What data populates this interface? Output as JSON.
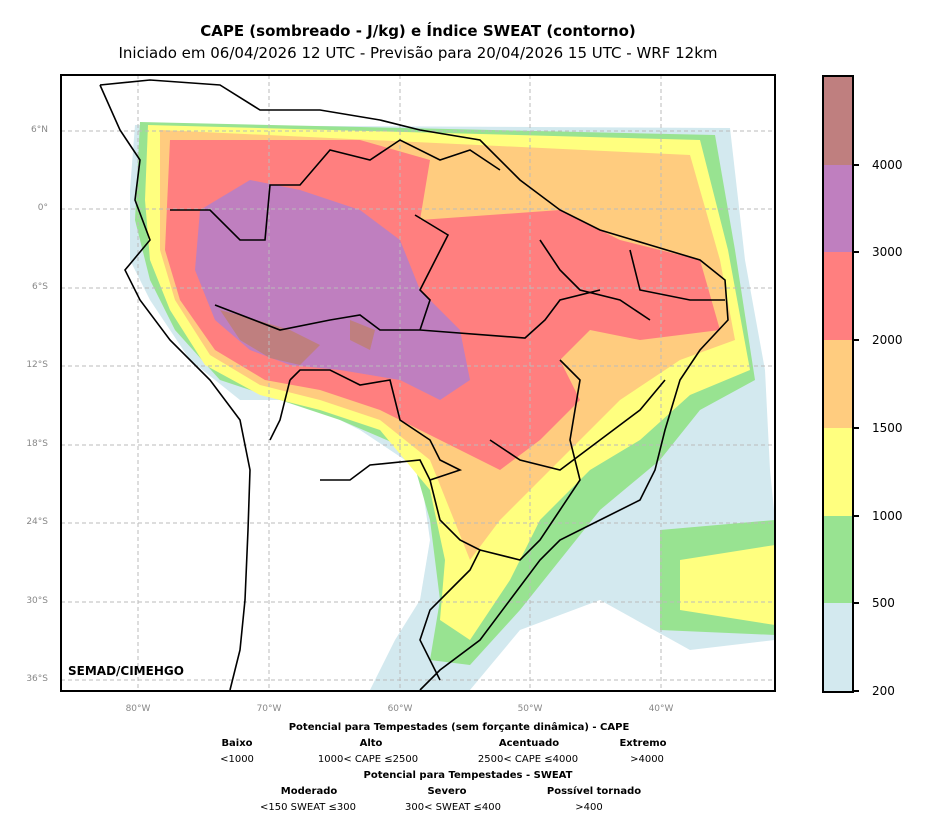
{
  "title": "CAPE (sombreado - J/kg) e Índice SWEAT (contorno)",
  "subtitle": "Iniciado em 06/04/2026 12 UTC - Previsão para 20/04/2026 15 UTC - WRF 12km",
  "credit": "SEMAD/CIMEHGO",
  "lat_ticks": [
    "6°N",
    "0°",
    "6°S",
    "12°S",
    "18°S",
    "24°S",
    "30°S",
    "36°S"
  ],
  "lon_ticks": [
    "80°W",
    "70°W",
    "60°W",
    "50°W",
    "40°W"
  ],
  "colorbar": {
    "ticks": [
      "200",
      "500",
      "1000",
      "1500",
      "2000",
      "3000",
      "4000"
    ],
    "colors": [
      "#d3e9ef",
      "#98e391",
      "#ffff7f",
      "#ffcc7f",
      "#ff7f7f",
      "#bf7fbf",
      "#bf7f7f"
    ]
  },
  "legend": {
    "cape_title": "Potencial para Tempestades (sem forçante dinâmica) - CAPE",
    "cape_classes": [
      {
        "name": "Baixo",
        "range": "<1000"
      },
      {
        "name": "Alto",
        "range": "1000< CAPE ≤2500"
      },
      {
        "name": "Acentuado",
        "range": "2500< CAPE ≤4000"
      },
      {
        "name": "Extremo",
        "range": ">4000"
      }
    ],
    "sweat_title": "Potencial para Tempestades - SWEAT",
    "sweat_classes": [
      {
        "name": "Moderado",
        "range": "<150 SWEAT ≤300"
      },
      {
        "name": "Severo",
        "range": "300< SWEAT ≤400"
      },
      {
        "name": "Possível tornado",
        "range": ">400"
      }
    ]
  }
}
